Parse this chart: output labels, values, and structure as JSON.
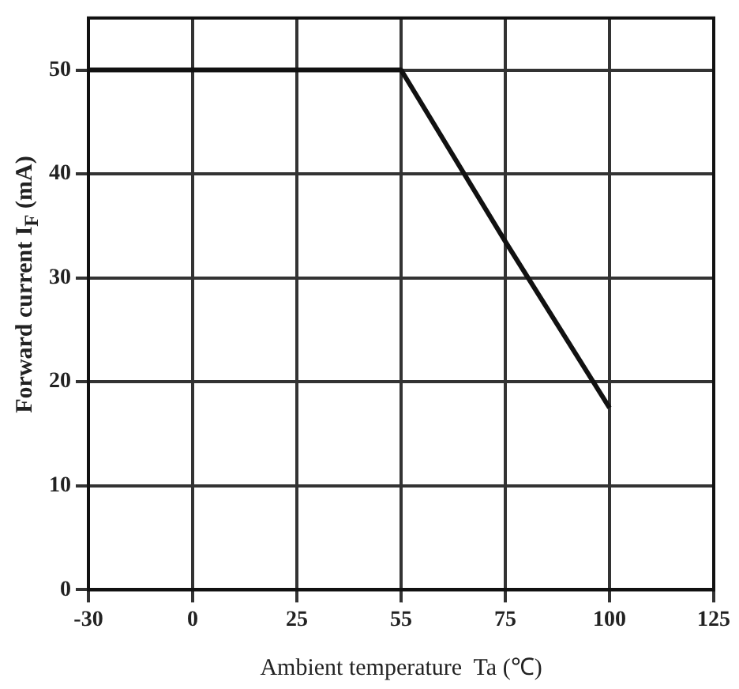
{
  "chart_data": {
    "type": "line",
    "xlabel": "Ambient temperature  Ta (℃)",
    "ylabel": "Forward current  I$_{F}$ (mA)",
    "categories": [
      "-30",
      "0",
      "25",
      "55",
      "75",
      "100",
      "125"
    ],
    "series": [
      {
        "color": "#111111",
        "values": [
          50,
          50,
          50,
          50,
          33.5,
          17.5,
          null
        ]
      }
    ],
    "ylim": [
      0,
      55
    ],
    "yticks": [
      0,
      10,
      20,
      30,
      40,
      50
    ],
    "grid": true,
    "legend": false,
    "marker": "none",
    "line_style": "solid"
  }
}
